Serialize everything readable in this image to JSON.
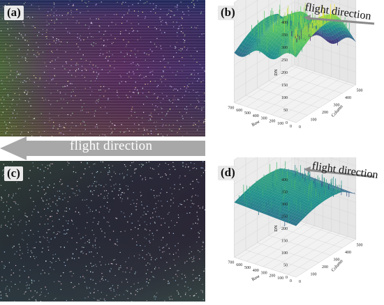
{
  "panels": {
    "a": {
      "label": "(a)"
    },
    "b": {
      "label": "(b)",
      "caption": "flight direction",
      "zlabel": "DN",
      "xlabel": "Row",
      "ylabel": "Column"
    },
    "c": {
      "label": "(c)"
    },
    "d": {
      "label": "(d)",
      "caption": "flight direction",
      "zlabel": "DN",
      "xlabel": "Row",
      "ylabel": "Column"
    }
  },
  "arrow": {
    "text": "flight direction"
  },
  "axes": {
    "z_ticks": [
      "400",
      "350",
      "300",
      "250",
      "200",
      "150",
      "100",
      "50",
      "0"
    ],
    "row_ticks": [
      "700",
      "600",
      "500",
      "400",
      "300",
      "200",
      "100",
      "0"
    ],
    "col_ticks": [
      "0",
      "100",
      "200",
      "300",
      "400",
      "500"
    ]
  },
  "colors": {
    "arrow": "#a8a8a8",
    "viridis_low": "#440154",
    "viridis_mid": "#21918c",
    "viridis_high": "#fde725"
  }
}
